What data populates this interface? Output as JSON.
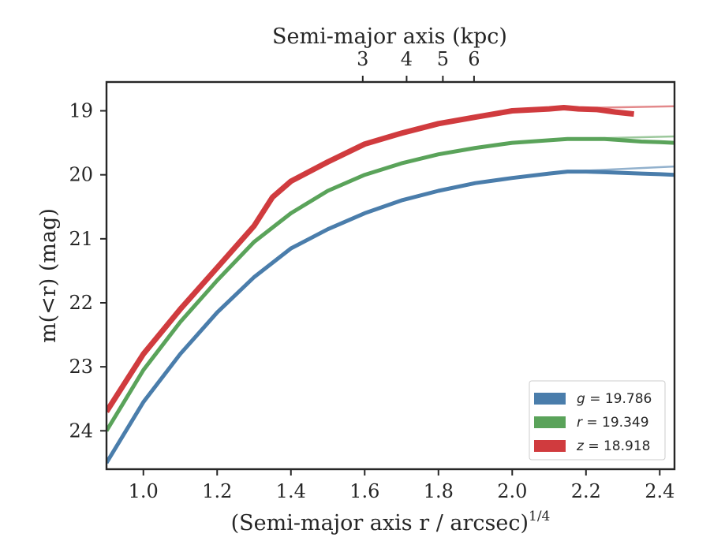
{
  "chart_data": {
    "type": "line",
    "xlabel": "(Semi-major axis r / arcsec)",
    "xlabel_exponent": "1/4",
    "ylabel": "m(<r) (mag)",
    "top_xlabel": "Semi-major axis (kpc)",
    "xlim": [
      0.9,
      2.44
    ],
    "ylim": [
      24.6,
      18.55
    ],
    "y_inverted": true,
    "x_ticks": [
      1.0,
      1.2,
      1.4,
      1.6,
      1.8,
      2.0,
      2.2,
      2.4
    ],
    "x_tick_labels": [
      "1.0",
      "1.2",
      "1.4",
      "1.6",
      "1.8",
      "2.0",
      "2.2",
      "2.4"
    ],
    "y_ticks": [
      19,
      20,
      21,
      22,
      23,
      24
    ],
    "y_tick_labels": [
      "19",
      "20",
      "21",
      "22",
      "23",
      "24"
    ],
    "top_ticks": [
      3,
      4,
      5,
      6
    ],
    "top_tick_labels": [
      "3",
      "4",
      "5",
      "6"
    ],
    "grid": false,
    "legend_position": "bottom-right",
    "series": [
      {
        "name": "g = 19.786",
        "band": "g",
        "total_mag": "19.786",
        "color": "#4a7dab",
        "x": [
          0.9,
          1.0,
          1.1,
          1.2,
          1.3,
          1.4,
          1.5,
          1.6,
          1.7,
          1.8,
          1.9,
          2.0,
          2.1,
          2.15,
          2.2,
          2.25,
          2.3,
          2.35,
          2.4,
          2.44
        ],
        "y": [
          24.5,
          23.55,
          22.8,
          22.15,
          21.6,
          21.15,
          20.85,
          20.6,
          20.4,
          20.25,
          20.13,
          20.05,
          19.98,
          19.95,
          19.95,
          19.96,
          19.97,
          19.98,
          19.99,
          20.0
        ],
        "fit_x": [
          2.15,
          2.44
        ],
        "fit_y": [
          19.95,
          19.87
        ]
      },
      {
        "name": "r = 19.349",
        "band": "r",
        "total_mag": "19.349",
        "color": "#5aa35a",
        "x": [
          0.9,
          1.0,
          1.1,
          1.2,
          1.3,
          1.4,
          1.5,
          1.6,
          1.7,
          1.8,
          1.9,
          2.0,
          2.1,
          2.15,
          2.2,
          2.25,
          2.3,
          2.35,
          2.4,
          2.44
        ],
        "y": [
          24.0,
          23.05,
          22.3,
          21.65,
          21.05,
          20.6,
          20.25,
          20.0,
          19.82,
          19.68,
          19.58,
          19.5,
          19.46,
          19.44,
          19.44,
          19.44,
          19.46,
          19.48,
          19.49,
          19.5
        ],
        "fit_x": [
          2.15,
          2.44
        ],
        "fit_y": [
          19.44,
          19.4
        ]
      },
      {
        "name": "z = 18.918",
        "band": "z",
        "total_mag": "18.918",
        "color": "#d03b3e",
        "x": [
          0.9,
          0.95,
          1.0,
          1.1,
          1.2,
          1.3,
          1.35,
          1.4,
          1.5,
          1.6,
          1.7,
          1.8,
          1.9,
          1.95,
          2.0,
          2.1,
          2.14,
          2.18,
          2.23,
          2.28,
          2.33
        ],
        "y": [
          23.7,
          23.25,
          22.8,
          22.1,
          21.45,
          20.8,
          20.35,
          20.1,
          19.8,
          19.52,
          19.35,
          19.2,
          19.1,
          19.05,
          19.0,
          18.97,
          18.95,
          18.97,
          18.98,
          19.02,
          19.05
        ],
        "fit_x": [
          2.15,
          2.44
        ],
        "fit_y": [
          18.96,
          18.93
        ]
      }
    ]
  }
}
